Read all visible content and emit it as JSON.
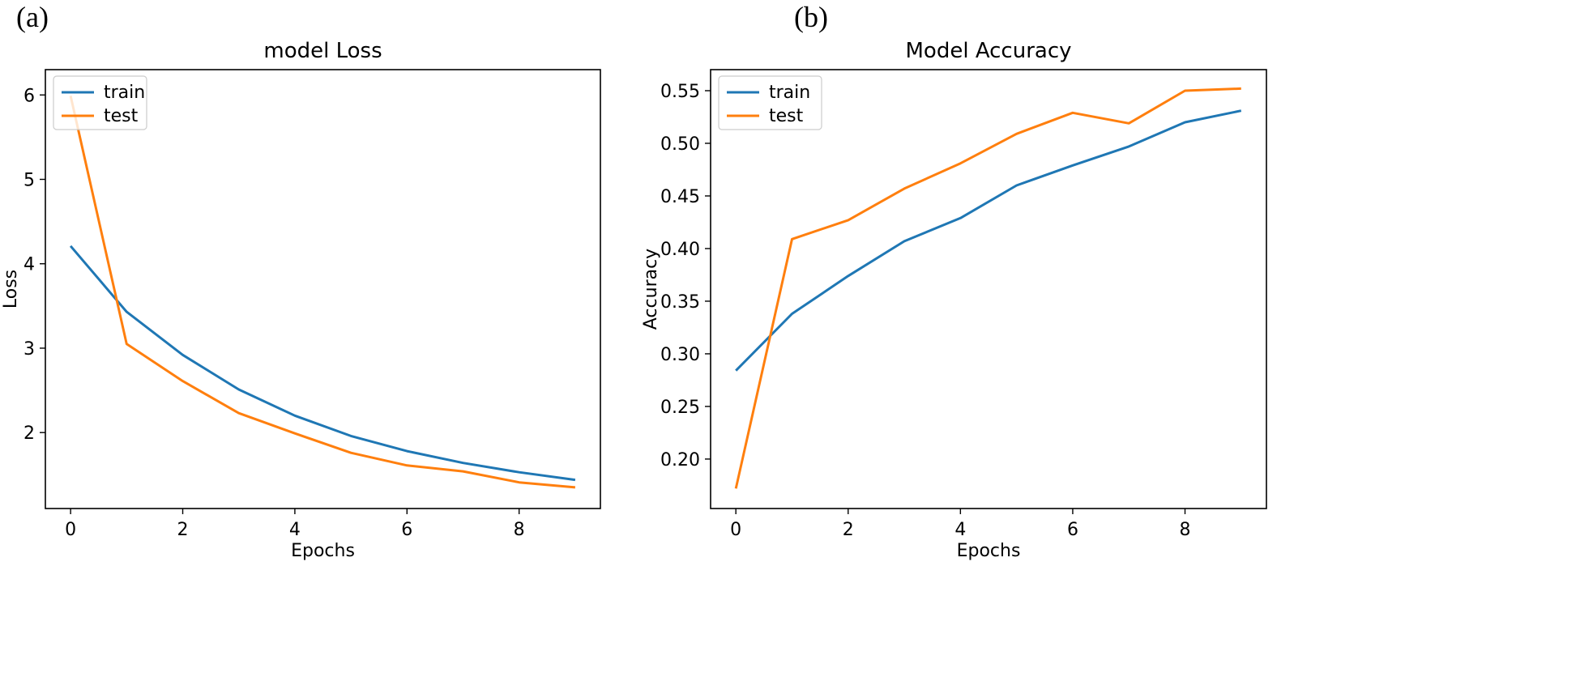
{
  "panels": {
    "a": "(a)",
    "b": "(b)"
  },
  "chart_data": [
    {
      "type": "line",
      "title": "model Loss",
      "xlabel": "Epochs",
      "ylabel": "Loss",
      "x": [
        0,
        1,
        2,
        3,
        4,
        5,
        6,
        7,
        8,
        9
      ],
      "xlim": [
        -0.45,
        9.45
      ],
      "ylim": [
        1.1,
        6.3
      ],
      "xticks": [
        0,
        2,
        4,
        6,
        8
      ],
      "yticks": [
        2,
        3,
        4,
        5,
        6
      ],
      "grid": false,
      "legend": "upper-left",
      "series": [
        {
          "name": "train",
          "color": "#1f77b4",
          "values": [
            4.21,
            3.43,
            2.92,
            2.51,
            2.2,
            1.96,
            1.78,
            1.64,
            1.53,
            1.44
          ]
        },
        {
          "name": "test",
          "color": "#ff7f0e",
          "values": [
            5.99,
            3.05,
            2.61,
            2.23,
            1.99,
            1.76,
            1.61,
            1.54,
            1.41,
            1.35
          ]
        }
      ]
    },
    {
      "type": "line",
      "title": "Model Accuracy",
      "xlabel": "Epochs",
      "ylabel": "Accuracy",
      "x": [
        0,
        1,
        2,
        3,
        4,
        5,
        6,
        7,
        8,
        9
      ],
      "xlim": [
        -0.45,
        9.45
      ],
      "ylim": [
        0.153,
        0.57
      ],
      "xticks": [
        0,
        2,
        4,
        6,
        8
      ],
      "yticks": [
        0.2,
        0.25,
        0.3,
        0.35,
        0.4,
        0.45,
        0.5,
        0.55
      ],
      "ytick_labels": [
        "0.20",
        "0.25",
        "0.30",
        "0.35",
        "0.40",
        "0.45",
        "0.50",
        "0.55"
      ],
      "grid": false,
      "legend": "upper-left",
      "series": [
        {
          "name": "train",
          "color": "#1f77b4",
          "values": [
            0.284,
            0.338,
            0.374,
            0.407,
            0.429,
            0.46,
            0.479,
            0.497,
            0.52,
            0.531
          ]
        },
        {
          "name": "test",
          "color": "#ff7f0e",
          "values": [
            0.172,
            0.409,
            0.427,
            0.457,
            0.481,
            0.509,
            0.529,
            0.519,
            0.55,
            0.552
          ]
        }
      ]
    }
  ]
}
